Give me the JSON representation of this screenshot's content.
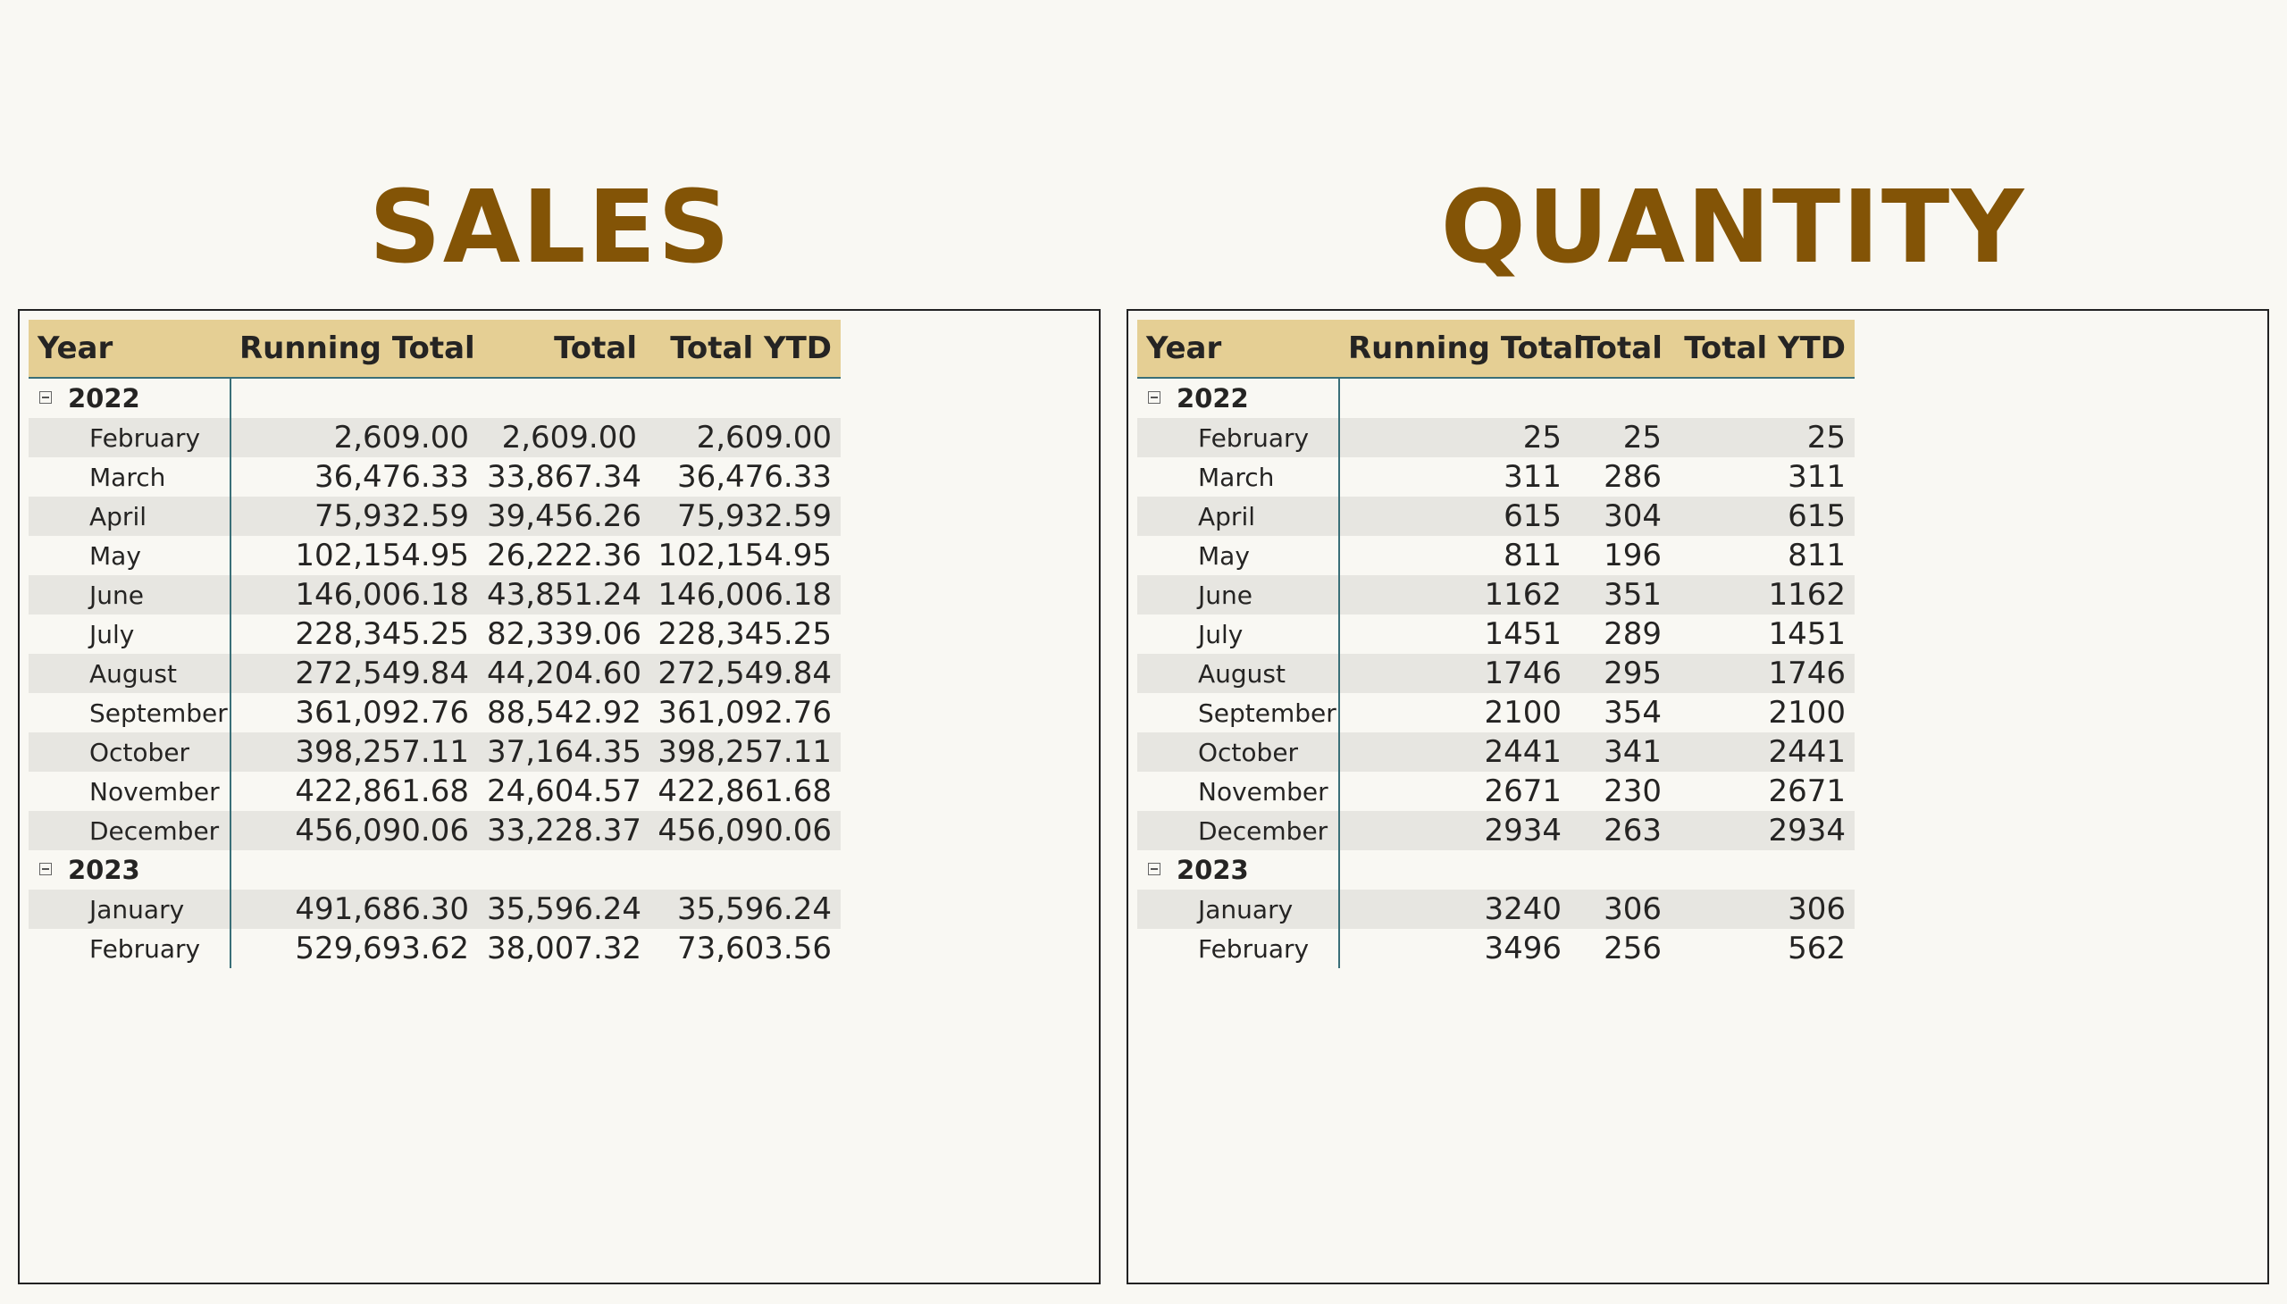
{
  "sales": {
    "title": "SALES",
    "headers": [
      "Year",
      "Running Total",
      "Total",
      "Total YTD"
    ],
    "groups": [
      {
        "year": "2022",
        "rows": [
          {
            "label": "February",
            "values": [
              "2,609.00",
              "2,609.00",
              "2,609.00"
            ]
          },
          {
            "label": "March",
            "values": [
              "36,476.33",
              "33,867.34",
              "36,476.33"
            ]
          },
          {
            "label": "April",
            "values": [
              "75,932.59",
              "39,456.26",
              "75,932.59"
            ]
          },
          {
            "label": "May",
            "values": [
              "102,154.95",
              "26,222.36",
              "102,154.95"
            ]
          },
          {
            "label": "June",
            "values": [
              "146,006.18",
              "43,851.24",
              "146,006.18"
            ]
          },
          {
            "label": "July",
            "values": [
              "228,345.25",
              "82,339.06",
              "228,345.25"
            ]
          },
          {
            "label": "August",
            "values": [
              "272,549.84",
              "44,204.60",
              "272,549.84"
            ]
          },
          {
            "label": "September",
            "values": [
              "361,092.76",
              "88,542.92",
              "361,092.76"
            ]
          },
          {
            "label": "October",
            "values": [
              "398,257.11",
              "37,164.35",
              "398,257.11"
            ]
          },
          {
            "label": "November",
            "values": [
              "422,861.68",
              "24,604.57",
              "422,861.68"
            ]
          },
          {
            "label": "December",
            "values": [
              "456,090.06",
              "33,228.37",
              "456,090.06"
            ]
          }
        ]
      },
      {
        "year": "2023",
        "rows": [
          {
            "label": "January",
            "values": [
              "491,686.30",
              "35,596.24",
              "35,596.24"
            ]
          },
          {
            "label": "February",
            "values": [
              "529,693.62",
              "38,007.32",
              "73,603.56"
            ]
          }
        ]
      }
    ]
  },
  "quantity": {
    "title": "QUANTITY",
    "headers": [
      "Year",
      "Running Total",
      "Total",
      "Total YTD"
    ],
    "groups": [
      {
        "year": "2022",
        "rows": [
          {
            "label": "February",
            "values": [
              "25",
              "25",
              "25"
            ]
          },
          {
            "label": "March",
            "values": [
              "311",
              "286",
              "311"
            ]
          },
          {
            "label": "April",
            "values": [
              "615",
              "304",
              "615"
            ]
          },
          {
            "label": "May",
            "values": [
              "811",
              "196",
              "811"
            ]
          },
          {
            "label": "June",
            "values": [
              "1162",
              "351",
              "1162"
            ]
          },
          {
            "label": "July",
            "values": [
              "1451",
              "289",
              "1451"
            ]
          },
          {
            "label": "August",
            "values": [
              "1746",
              "295",
              "1746"
            ]
          },
          {
            "label": "September",
            "values": [
              "2100",
              "354",
              "2100"
            ]
          },
          {
            "label": "October",
            "values": [
              "2441",
              "341",
              "2441"
            ]
          },
          {
            "label": "November",
            "values": [
              "2671",
              "230",
              "2671"
            ]
          },
          {
            "label": "December",
            "values": [
              "2934",
              "263",
              "2934"
            ]
          }
        ]
      },
      {
        "year": "2023",
        "rows": [
          {
            "label": "January",
            "values": [
              "3240",
              "306",
              "306"
            ]
          },
          {
            "label": "February",
            "values": [
              "3496",
              "256",
              "562"
            ]
          }
        ]
      }
    ]
  }
}
